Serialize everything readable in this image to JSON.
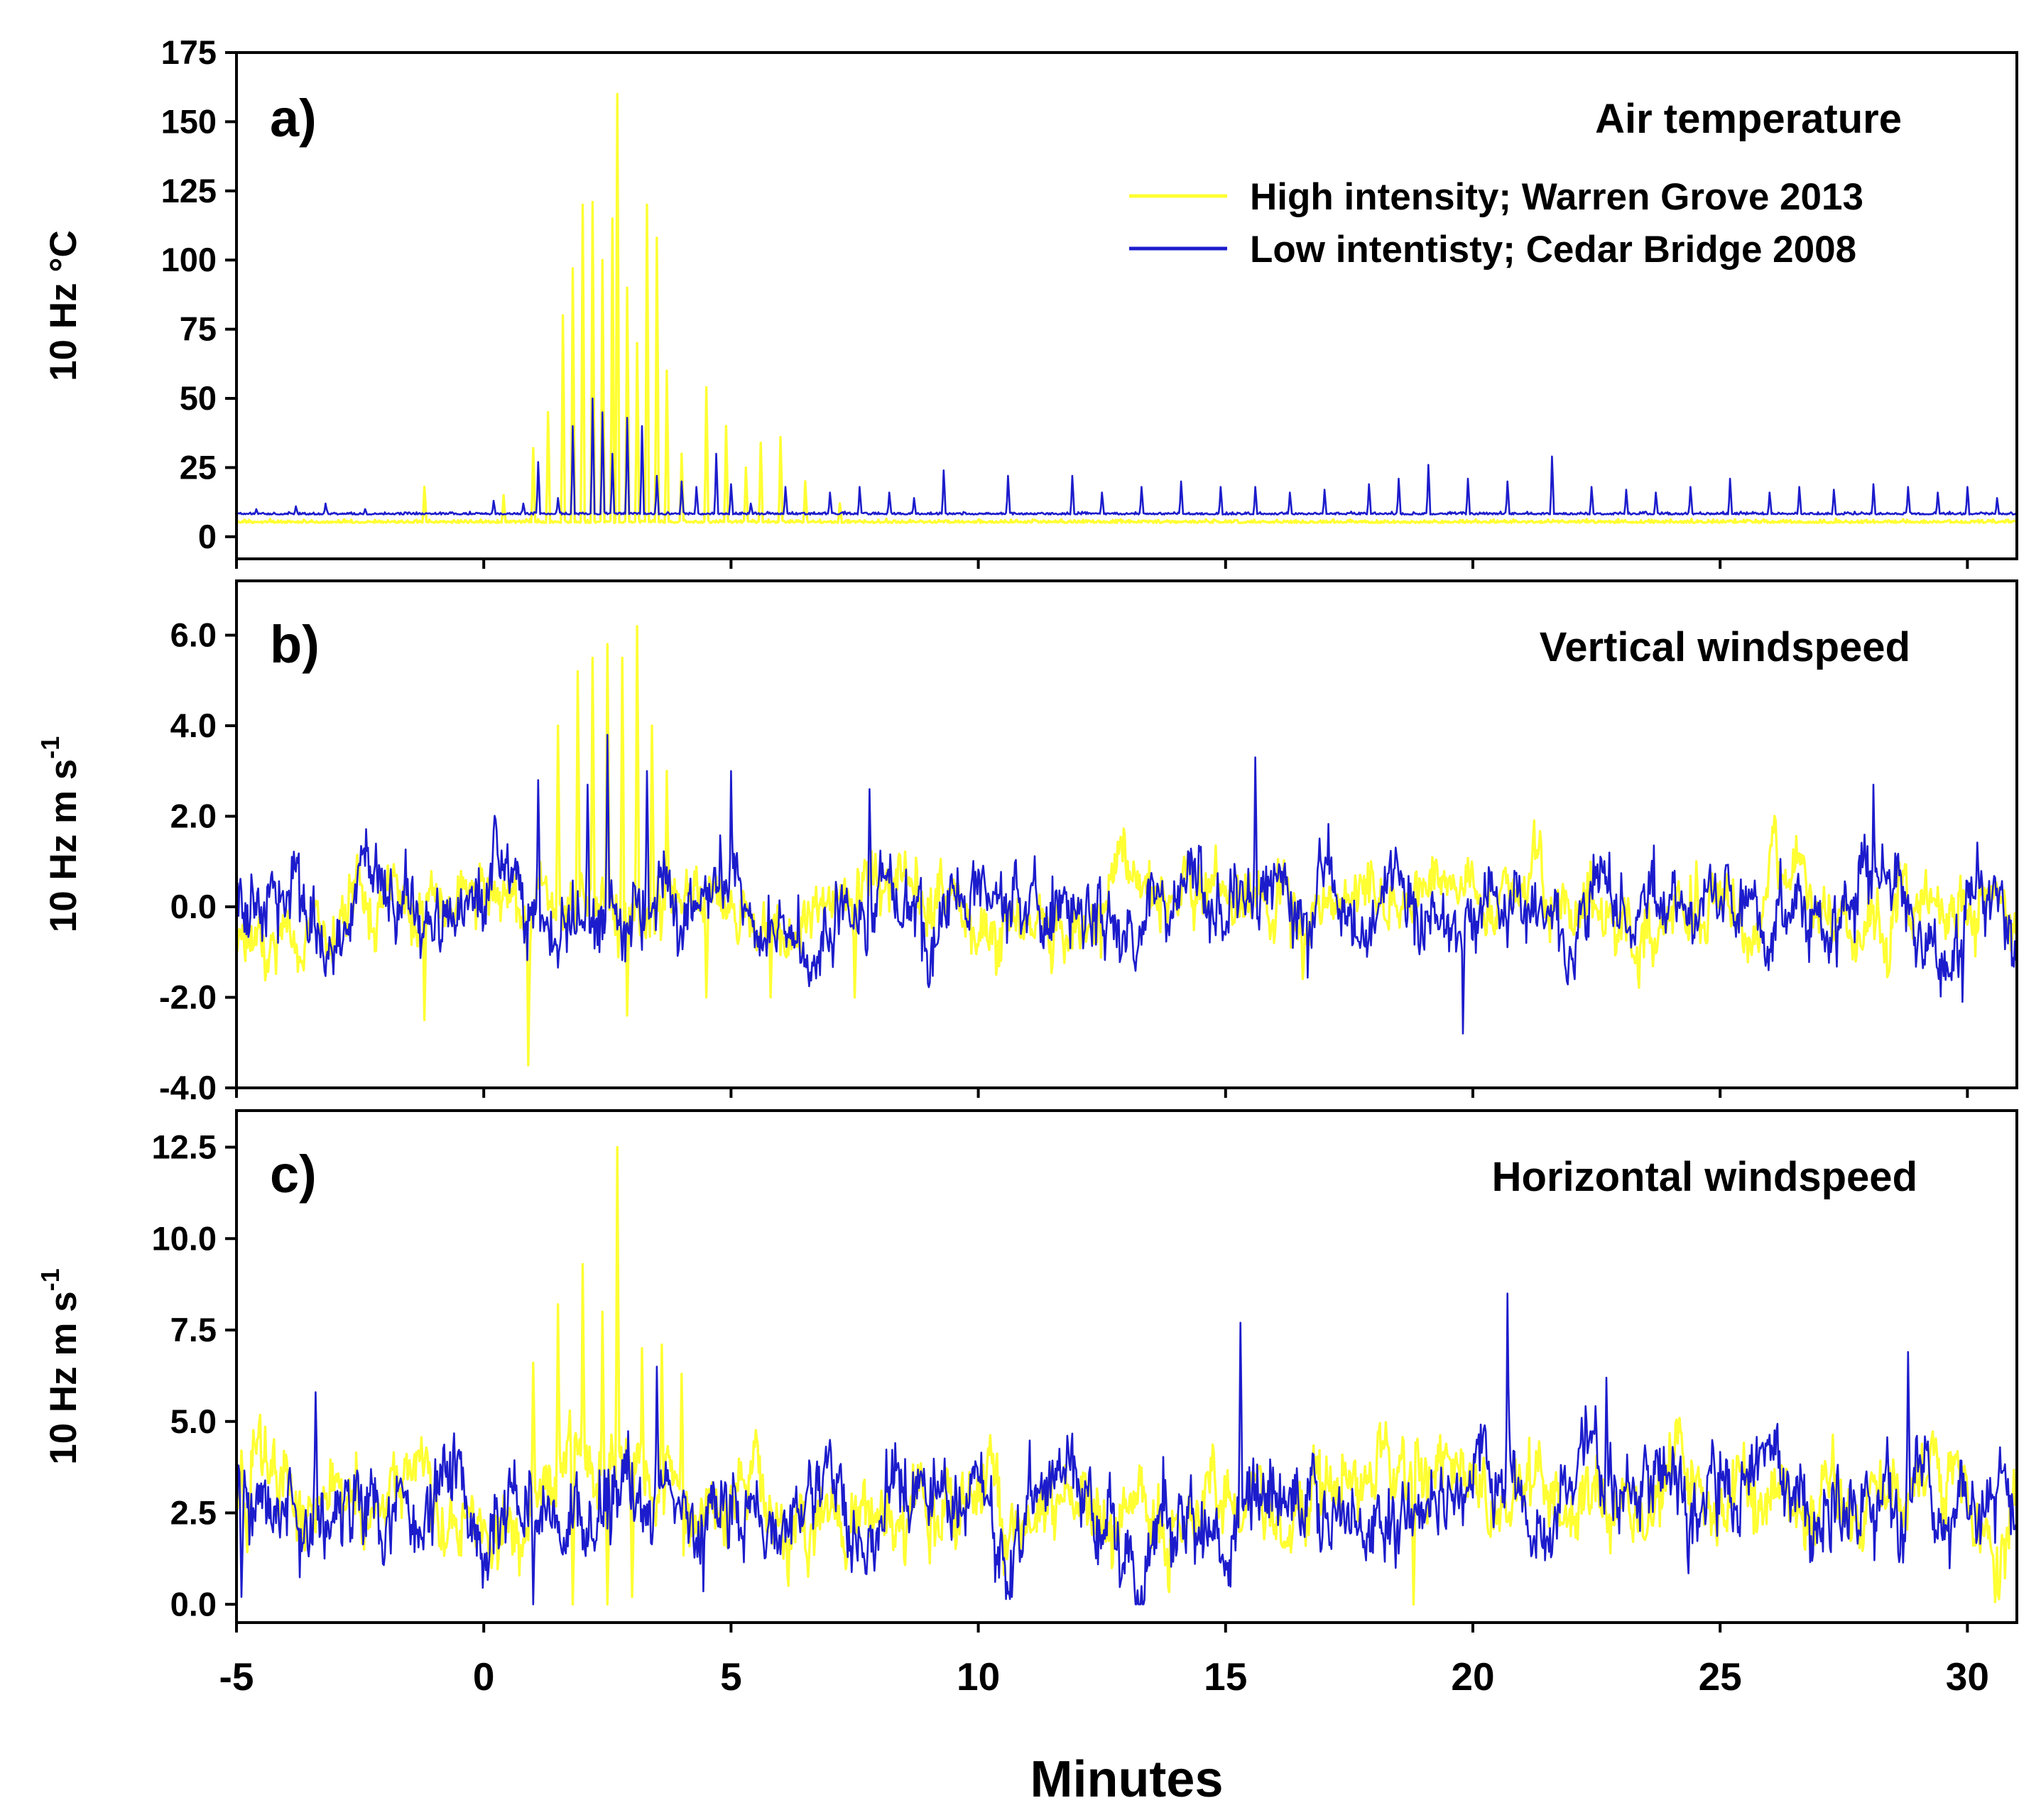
{
  "chart_data": {
    "type": "line",
    "xlabel": "Minutes",
    "xlim": [
      -5,
      31
    ],
    "xticks": [
      -5,
      0,
      5,
      10,
      15,
      20,
      25,
      30
    ],
    "xtick_labels": [
      "-5",
      "0",
      "5",
      "10",
      "15",
      "20",
      "25",
      "30"
    ],
    "legend": {
      "placement": "top-right of panel a",
      "entries": [
        {
          "label": "High intensity; Warren Grove 2013",
          "color": "#ffff33"
        },
        {
          "label": "Low intentisty; Cedar Bridge 2008",
          "color": "#1c1ccc"
        }
      ]
    },
    "colors": {
      "high": "#ffff33",
      "low": "#1c1ccc",
      "axis": "#000000"
    },
    "panels": [
      {
        "letter": "a)",
        "title": "Air temperature",
        "ylabel": "10 Hz °C",
        "ylim": [
          -8,
          175
        ],
        "yticks": [
          0,
          25,
          50,
          75,
          100,
          125,
          150,
          175
        ],
        "ytick_labels": [
          "0",
          "25",
          "50",
          "75",
          "100",
          "125",
          "150",
          "175"
        ],
        "series": [
          {
            "name": "High intensity; Warren Grove 2013",
            "color": "#ffff33",
            "baseline": 5,
            "noise": 1.5,
            "bursts": [
              [
                -1.2,
                18
              ],
              [
                0.4,
                15
              ],
              [
                1.0,
                32
              ],
              [
                1.3,
                45
              ],
              [
                1.6,
                80
              ],
              [
                1.8,
                97
              ],
              [
                2.0,
                120
              ],
              [
                2.2,
                121
              ],
              [
                2.4,
                100
              ],
              [
                2.6,
                115
              ],
              [
                2.7,
                160
              ],
              [
                2.9,
                90
              ],
              [
                3.1,
                70
              ],
              [
                3.3,
                120
              ],
              [
                3.5,
                108
              ],
              [
                3.7,
                60
              ],
              [
                4.0,
                30
              ],
              [
                4.5,
                54
              ],
              [
                4.9,
                40
              ],
              [
                5.3,
                25
              ],
              [
                5.6,
                34
              ],
              [
                6.0,
                36
              ],
              [
                6.5,
                20
              ],
              [
                7.2,
                12
              ]
            ]
          },
          {
            "name": "Low intentisty; Cedar Bridge 2008",
            "color": "#1c1ccc",
            "baseline": 8,
            "noise": 1.2,
            "bursts": [
              [
                -4.6,
                10
              ],
              [
                -3.8,
                11
              ],
              [
                -3.2,
                12
              ],
              [
                -2.4,
                10
              ],
              [
                0.2,
                13
              ],
              [
                0.8,
                12
              ],
              [
                1.1,
                27
              ],
              [
                1.5,
                14
              ],
              [
                1.8,
                40
              ],
              [
                2.2,
                50
              ],
              [
                2.4,
                45
              ],
              [
                2.6,
                30
              ],
              [
                2.9,
                43
              ],
              [
                3.2,
                40
              ],
              [
                3.5,
                22
              ],
              [
                4.0,
                20
              ],
              [
                4.3,
                18
              ],
              [
                4.7,
                30
              ],
              [
                5.0,
                19
              ],
              [
                5.4,
                12
              ],
              [
                6.1,
                18
              ],
              [
                7.0,
                16
              ],
              [
                7.6,
                18
              ],
              [
                8.2,
                16
              ],
              [
                8.7,
                14
              ],
              [
                9.3,
                24
              ],
              [
                10.6,
                22
              ],
              [
                11.9,
                22
              ],
              [
                12.5,
                16
              ],
              [
                13.3,
                18
              ],
              [
                14.1,
                20
              ],
              [
                14.9,
                18
              ],
              [
                15.6,
                18
              ],
              [
                16.3,
                16
              ],
              [
                17.0,
                17
              ],
              [
                17.9,
                19
              ],
              [
                18.5,
                21
              ],
              [
                19.1,
                26
              ],
              [
                19.9,
                21
              ],
              [
                20.7,
                20
              ],
              [
                21.6,
                29
              ],
              [
                22.4,
                18
              ],
              [
                23.1,
                17
              ],
              [
                23.7,
                16
              ],
              [
                24.4,
                18
              ],
              [
                25.2,
                21
              ],
              [
                26.0,
                16
              ],
              [
                26.6,
                18
              ],
              [
                27.3,
                17
              ],
              [
                28.1,
                19
              ],
              [
                28.8,
                18
              ],
              [
                29.4,
                16
              ],
              [
                30.0,
                18
              ],
              [
                30.6,
                14
              ]
            ]
          }
        ]
      },
      {
        "letter": "b)",
        "title": "Vertical windspeed",
        "ylabel": "10 Hz m s",
        "ylabel_sup": "-1",
        "ylim": [
          -4.0,
          7.2
        ],
        "yticks": [
          -4.0,
          -2.0,
          0.0,
          2.0,
          4.0,
          6.0
        ],
        "ytick_labels": [
          "-4.0",
          "-2.0",
          "0.0",
          "2.0",
          "4.0",
          "6.0"
        ],
        "series": [
          {
            "name": "High intensity; Warren Grove 2013",
            "color": "#ffff33",
            "baseline": 0.0,
            "noise": 0.75,
            "bursts": [
              [
                -1.2,
                -2.5
              ],
              [
                0.9,
                -3.5
              ],
              [
                1.5,
                4.0
              ],
              [
                1.9,
                5.2
              ],
              [
                2.2,
                5.5
              ],
              [
                2.5,
                5.8
              ],
              [
                2.8,
                5.5
              ],
              [
                3.1,
                6.2
              ],
              [
                3.4,
                4.0
              ],
              [
                3.7,
                3.0
              ],
              [
                2.9,
                -2.4
              ],
              [
                4.5,
                -2.0
              ],
              [
                5.8,
                -2.0
              ],
              [
                7.5,
                -2.0
              ]
            ]
          },
          {
            "name": "Low intentisty; Cedar Bridge 2008",
            "color": "#1c1ccc",
            "baseline": 0.0,
            "noise": 0.85,
            "bursts": [
              [
                1.1,
                2.8
              ],
              [
                2.1,
                2.7
              ],
              [
                2.5,
                3.8
              ],
              [
                3.3,
                3.0
              ],
              [
                5.0,
                3.0
              ],
              [
                7.8,
                2.6
              ],
              [
                15.6,
                3.3
              ],
              [
                19.8,
                -2.8
              ],
              [
                28.1,
                2.7
              ],
              [
                29.9,
                -2.1
              ]
            ]
          }
        ]
      },
      {
        "letter": "c)",
        "title": "Horizontal windspeed",
        "ylabel": "10 Hz m s",
        "ylabel_sup": "-1",
        "ylim": [
          -0.5,
          13.5
        ],
        "yticks": [
          0.0,
          2.5,
          5.0,
          7.5,
          10.0,
          12.5
        ],
        "ytick_labels": [
          "0.0",
          "2.5",
          "5.0",
          "7.5",
          "10.0",
          "12.5"
        ],
        "series": [
          {
            "name": "High intensity; Warren Grove 2013",
            "color": "#ffff33",
            "baseline": 3.0,
            "noise": 1.1,
            "bursts": [
              [
                -4.9,
                4.2
              ],
              [
                1.0,
                6.6
              ],
              [
                1.5,
                8.2
              ],
              [
                2.0,
                9.3
              ],
              [
                2.4,
                8.0
              ],
              [
                2.7,
                12.5
              ],
              [
                3.2,
                7.0
              ],
              [
                3.6,
                7.1
              ],
              [
                4.0,
                6.3
              ],
              [
                1.8,
                0.0
              ],
              [
                2.5,
                0.0
              ],
              [
                3.0,
                0.2
              ],
              [
                18.8,
                0.0
              ]
            ]
          },
          {
            "name": "Low intentisty; Cedar Bridge 2008",
            "color": "#1c1ccc",
            "baseline": 2.8,
            "noise": 1.2,
            "bursts": [
              [
                -4.9,
                0.2
              ],
              [
                -3.4,
                5.8
              ],
              [
                1.0,
                0.0
              ],
              [
                3.5,
                6.5
              ],
              [
                15.3,
                7.7
              ],
              [
                20.7,
                8.5
              ],
              [
                22.7,
                6.2
              ],
              [
                28.8,
                6.9
              ],
              [
                30.5,
                3.0
              ]
            ]
          }
        ]
      }
    ]
  }
}
